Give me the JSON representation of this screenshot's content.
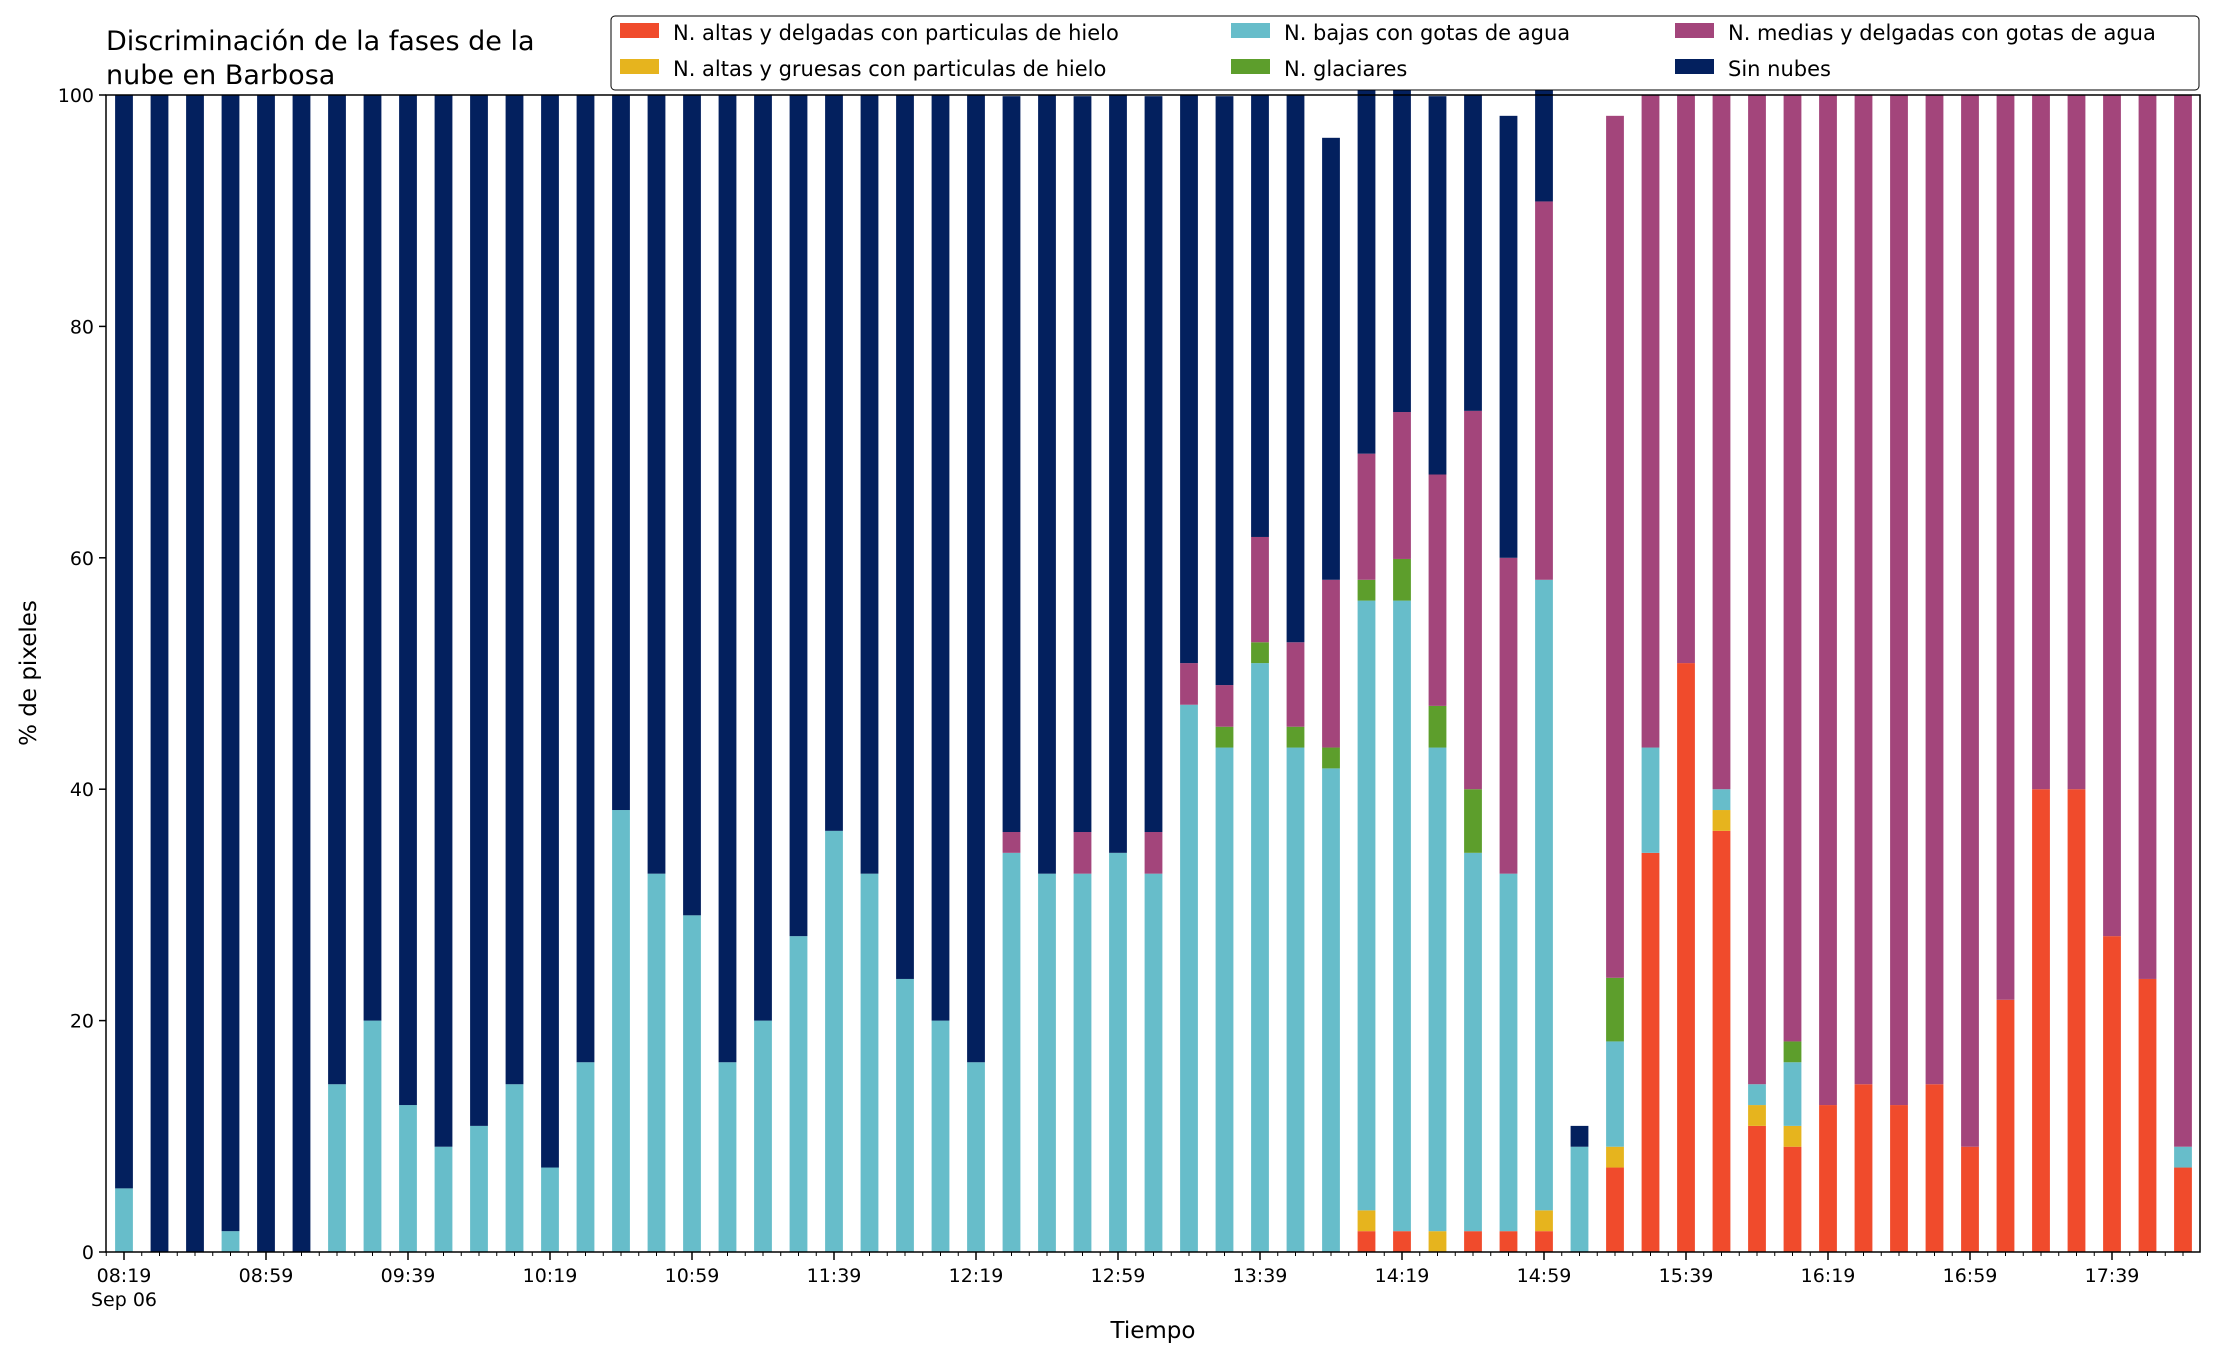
{
  "chart_data": {
    "type": "bar",
    "stacked": true,
    "title_lines": [
      "Discriminación de la fases de la",
      "nube en Barbosa"
    ],
    "xlabel": "Tiempo",
    "ylabel": "% de pixeles",
    "ylim": [
      0,
      100
    ],
    "yticks": [
      "0",
      "20",
      "40",
      "60",
      "80",
      "100"
    ],
    "grid": false,
    "legend_position": "top-right",
    "xtick_labels": [
      {
        "index": 0,
        "label": "08:19",
        "sublabel": "Sep 06"
      },
      {
        "index": 4,
        "label": "08:59"
      },
      {
        "index": 8,
        "label": "09:39"
      },
      {
        "index": 12,
        "label": "10:19"
      },
      {
        "index": 16,
        "label": "10:59"
      },
      {
        "index": 20,
        "label": "11:39"
      },
      {
        "index": 24,
        "label": "12:19"
      },
      {
        "index": 28,
        "label": "12:59"
      },
      {
        "index": 32,
        "label": "13:39"
      },
      {
        "index": 36,
        "label": "14:19"
      },
      {
        "index": 40,
        "label": "14:59"
      },
      {
        "index": 44,
        "label": "15:39"
      },
      {
        "index": 48,
        "label": "16:19"
      },
      {
        "index": 52,
        "label": "16:59"
      },
      {
        "index": 56,
        "label": "17:39"
      }
    ],
    "series": [
      {
        "name": "N. altas y delgadas con particulas de hielo",
        "color": "#f04b2c",
        "values": [
          0,
          0,
          0,
          0,
          0,
          0,
          0,
          0,
          0,
          0,
          0,
          0,
          0,
          0,
          0,
          0,
          0,
          0,
          0,
          0,
          0,
          0,
          0,
          0,
          0,
          0,
          0,
          0,
          0,
          0,
          0,
          0,
          0,
          0,
          0,
          1.8,
          1.8,
          0,
          1.8,
          1.8,
          1.8,
          0,
          7.3,
          34.5,
          50.9,
          36.4,
          10.9,
          9.1,
          12.7,
          14.5,
          12.7,
          14.5,
          9.1,
          21.8,
          40,
          40,
          27.3,
          23.6,
          7.3
        ]
      },
      {
        "name": "N. altas y gruesas con particulas de hielo",
        "color": "#e6b41e",
        "values": [
          0,
          0,
          0,
          0,
          0,
          0,
          0,
          0,
          0,
          0,
          0,
          0,
          0,
          0,
          0,
          0,
          0,
          0,
          0,
          0,
          0,
          0,
          0,
          0,
          0,
          0,
          0,
          0,
          0,
          0,
          0,
          0,
          0,
          0,
          0,
          1.8,
          0,
          1.8,
          0,
          0,
          1.8,
          0,
          1.8,
          0,
          0,
          1.8,
          1.8,
          1.8,
          0,
          0,
          0,
          0,
          0,
          0,
          0,
          0,
          0,
          0,
          0
        ]
      },
      {
        "name": "N. bajas con gotas de agua",
        "color": "#67bdca",
        "values": [
          5.5,
          0,
          0,
          1.8,
          0,
          0,
          14.5,
          20,
          12.7,
          9.1,
          10.9,
          14.5,
          7.3,
          16.4,
          38.2,
          32.7,
          29.1,
          16.4,
          20,
          27.3,
          36.4,
          32.7,
          23.6,
          20,
          16.4,
          34.5,
          32.7,
          32.7,
          34.5,
          32.7,
          47.3,
          43.6,
          50.9,
          43.6,
          41.8,
          52.7,
          54.5,
          41.8,
          32.7,
          30.9,
          54.5,
          9.1,
          9.1,
          9.1,
          0,
          1.8,
          1.8,
          5.5,
          0,
          0,
          0,
          0,
          0,
          0,
          0,
          0,
          0,
          0,
          1.8
        ]
      },
      {
        "name": "N. glaciares",
        "color": "#5d9e2c",
        "values": [
          0,
          0,
          0,
          0,
          0,
          0,
          0,
          0,
          0,
          0,
          0,
          0,
          0,
          0,
          0,
          0,
          0,
          0,
          0,
          0,
          0,
          0,
          0,
          0,
          0,
          0,
          0,
          0,
          0,
          0,
          0,
          1.8,
          1.8,
          1.8,
          1.8,
          1.8,
          3.6,
          3.6,
          5.5,
          0,
          0,
          0,
          5.5,
          0,
          0,
          0,
          0,
          1.8,
          0,
          0,
          0,
          0,
          0,
          0,
          0,
          0,
          0,
          0,
          0
        ]
      },
      {
        "name": "N. medias y delgadas con gotas de agua",
        "color": "#a3457b",
        "values": [
          0,
          0,
          0,
          0,
          0,
          0,
          0,
          0,
          0,
          0,
          0,
          0,
          0,
          0,
          0,
          0,
          0,
          0,
          0,
          0,
          0,
          0,
          0,
          0,
          0,
          1.8,
          0,
          3.6,
          0,
          3.6,
          3.6,
          3.6,
          9.1,
          7.3,
          14.5,
          10.9,
          12.7,
          20,
          32.7,
          27.3,
          32.7,
          0,
          74.5,
          56.4,
          49.1,
          60,
          85.5,
          81.8,
          87.3,
          85.5,
          87.3,
          85.5,
          90.9,
          78.2,
          60,
          60,
          72.7,
          76.4,
          90.9
        ]
      },
      {
        "name": "Sin nubes",
        "color": "#03205e",
        "values": [
          94.5,
          100,
          100,
          98.2,
          100,
          100,
          85.5,
          80,
          87.3,
          90.9,
          89.1,
          85.5,
          92.7,
          83.6,
          61.8,
          67.3,
          70.9,
          83.6,
          80,
          72.7,
          63.6,
          67.3,
          76.4,
          80,
          83.6,
          63.6,
          67.3,
          63.6,
          65.5,
          63.6,
          49.1,
          50.9,
          38.2,
          47.3,
          38.2,
          32.7,
          29.1,
          32.7,
          27.3,
          38.2,
          12.7,
          1.8,
          0,
          0,
          0,
          0,
          0,
          0,
          0,
          0,
          0,
          0,
          0,
          0,
          0,
          0,
          0,
          0,
          0
        ]
      }
    ]
  }
}
